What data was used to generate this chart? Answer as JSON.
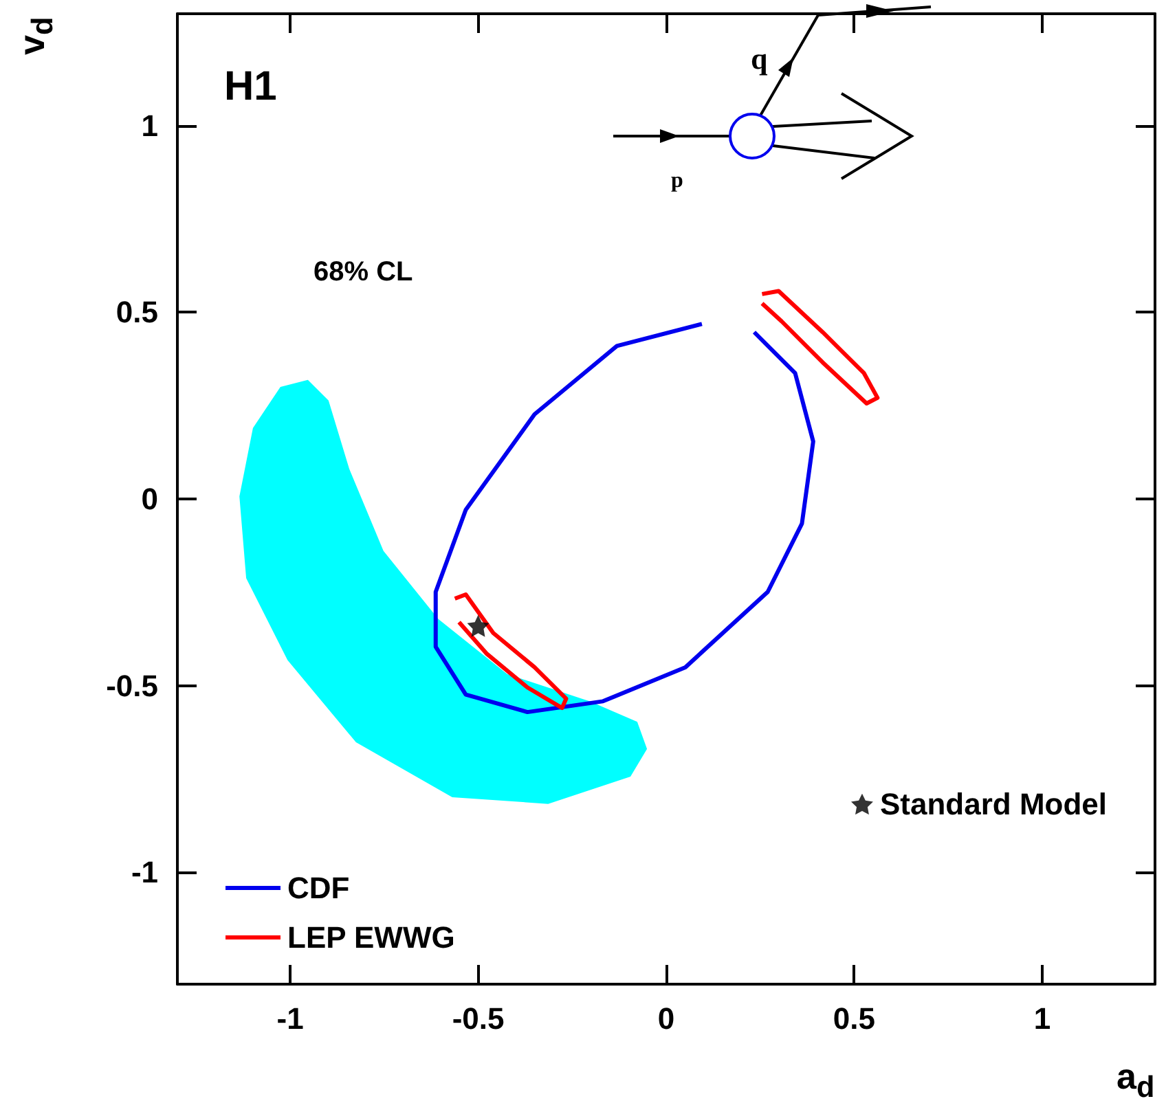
{
  "chart_data": {
    "type": "line",
    "xlabel": "a$_{d}$",
    "ylabel": "v$_{d}$",
    "xlim": [
      -1.3,
      1.3
    ],
    "ylim": [
      -1.3,
      1.3
    ],
    "xticks": [
      -1,
      -0.5,
      0,
      0.5,
      1
    ],
    "yticks": [
      -1,
      -0.5,
      0,
      0.5,
      1
    ],
    "grid": false,
    "legend": "bottom left",
    "annotations": [
      "H1",
      "68% CL",
      "q",
      "p"
    ],
    "series": [
      {
        "type": "area",
        "color": "#00ffff",
        "x": [
          -0.953,
          -0.898,
          -0.843,
          -0.752,
          -0.606,
          -0.423,
          -0.204,
          -0.077,
          -0.051,
          -0.095,
          -0.314,
          -0.569,
          -0.825,
          -1.007,
          -1.117,
          -1.135,
          -1.099,
          -1.026,
          -0.953
        ],
        "values": [
          0.319,
          0.264,
          0.081,
          -0.139,
          -0.322,
          -0.469,
          -0.542,
          -0.597,
          -0.67,
          -0.744,
          -0.817,
          -0.799,
          -0.652,
          -0.432,
          -0.212,
          0.007,
          0.19,
          0.3,
          0.319
        ]
      },
      {
        "name": "CDF",
        "color": "#0000ee",
        "x": [
          0.095,
          -0.131,
          -0.35,
          -0.533,
          -0.613,
          -0.613,
          -0.533,
          -0.369,
          -0.168,
          0.051,
          0.27,
          0.361,
          0.391,
          0.343,
          0.234
        ],
        "values": [
          0.469,
          0.41,
          0.227,
          -0.029,
          -0.249,
          -0.396,
          -0.524,
          -0.571,
          -0.542,
          -0.451,
          -0.249,
          -0.066,
          0.154,
          0.337,
          0.447
        ]
      },
      {
        "name": "LEP EWWG",
        "color": "#ff0000",
        "x": [
          0.255,
          0.299,
          0.416,
          0.526,
          0.562,
          0.533,
          0.416,
          0.307,
          0.255
        ],
        "values": [
          0.549,
          0.557,
          0.447,
          0.337,
          0.271,
          0.256,
          0.366,
          0.476,
          0.524
        ]
      },
      {
        "color": "#ff0000",
        "x": [
          -0.562,
          -0.533,
          -0.46,
          -0.35,
          -0.266,
          -0.277,
          -0.369,
          -0.478,
          -0.551
        ],
        "values": [
          -0.267,
          -0.256,
          -0.359,
          -0.451,
          -0.535,
          -0.56,
          -0.505,
          -0.414,
          -0.33
        ]
      },
      {
        "name": "Standard Model",
        "type": "scatter",
        "marker": "star",
        "color": "#000000",
        "x": [
          -0.5
        ],
        "values": [
          -0.34
        ]
      }
    ]
  }
}
